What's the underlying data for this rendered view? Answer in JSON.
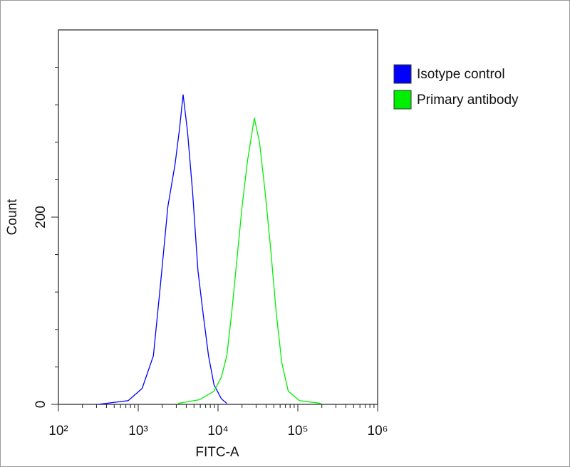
{
  "chart_data": {
    "type": "line",
    "x_label": "FITC-A",
    "y_label": "Count",
    "log_x": true,
    "xlim": [
      100,
      1000000
    ],
    "xticks": [
      {
        "value": 100,
        "label": "10²"
      },
      {
        "value": 1000,
        "label": "10³"
      },
      {
        "value": 10000,
        "label": "10⁴"
      },
      {
        "value": 100000,
        "label": "10⁵"
      },
      {
        "value": 1000000,
        "label": "10⁶"
      }
    ],
    "xminor_ticks": [
      200,
      300,
      400,
      500,
      600,
      700,
      800,
      900,
      2000,
      3000,
      4000,
      5000,
      6000,
      7000,
      8000,
      9000,
      20000,
      30000,
      40000,
      50000,
      60000,
      70000,
      80000,
      90000,
      200000,
      300000,
      400000,
      500000,
      600000,
      700000,
      800000,
      900000
    ],
    "ylim": [
      0,
      400
    ],
    "yticks": [
      0,
      200
    ],
    "yminor_ticks": [
      40,
      80,
      120,
      160,
      240,
      280,
      320,
      360
    ],
    "legend_position": "right",
    "series": [
      {
        "name": "Isotype control",
        "color": "#0000ff",
        "x": [
          316,
          750,
          1120,
          1550,
          1900,
          2350,
          2900,
          3300,
          3650,
          4150,
          4800,
          5600,
          6500,
          7600,
          8900,
          11000,
          12900
        ],
        "values": [
          0,
          4,
          17,
          52,
          128,
          211,
          257,
          295,
          331,
          291,
          227,
          143,
          97,
          52,
          21,
          6,
          1
        ]
      },
      {
        "name": "Primary antibody",
        "color": "#00ee00",
        "x": [
          3160,
          5900,
          8900,
          11000,
          12900,
          14800,
          17400,
          20000,
          23400,
          28500,
          33100,
          38900,
          45700,
          53700,
          63100,
          75900,
          105000,
          195000
        ],
        "values": [
          1,
          5,
          14,
          29,
          52,
          97,
          158,
          211,
          260,
          306,
          280,
          227,
          166,
          97,
          44,
          14,
          4,
          1
        ]
      }
    ]
  }
}
